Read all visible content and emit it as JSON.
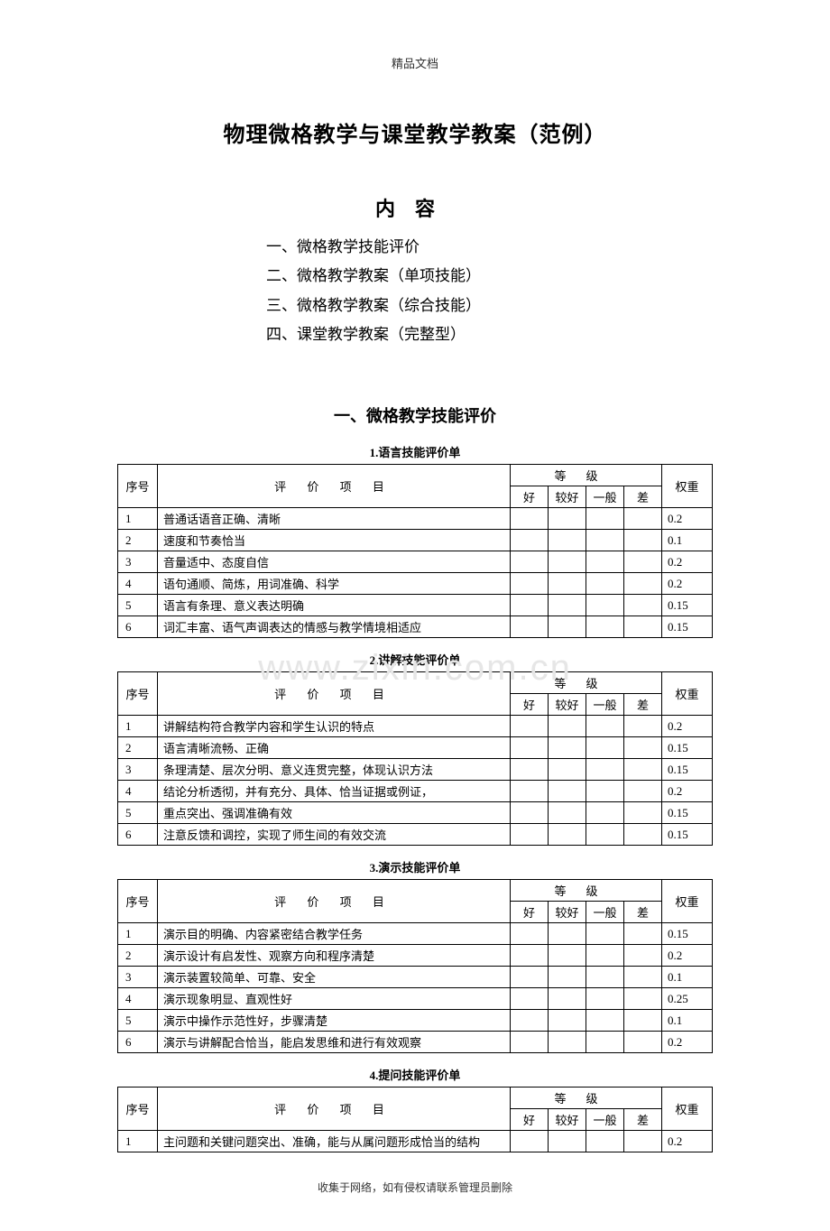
{
  "header_note": "精品文档",
  "main_title": "物理微格教学与课堂教学教案（范例）",
  "toc_title": "内容",
  "toc_items": [
    "一、微格教学技能评价",
    "二、微格教学教案（单项技能）",
    "三、微格教学教案（综合技能）",
    "四、课堂教学教案（完整型）"
  ],
  "section_title": "一、微格教学技能评价",
  "col_seq": "序号",
  "col_item": "评 价 项 目",
  "col_grade": "等级",
  "col_g1": "好",
  "col_g2": "较好",
  "col_g3": "一般",
  "col_g4": "差",
  "col_weight": "权重",
  "watermark": "www.zixin.com.cn",
  "footer_note": "收集于网络，如有侵权请联系管理员删除",
  "tables": [
    {
      "title": "1.语言技能评价单",
      "rows": [
        {
          "n": "1",
          "item": "普通话语音正确、清晰",
          "w": "0.2"
        },
        {
          "n": "2",
          "item": "速度和节奏恰当",
          "w": "0.1"
        },
        {
          "n": "3",
          "item": "音量适中、态度自信",
          "w": "0.2"
        },
        {
          "n": "4",
          "item": "语句通顺、简炼，用词准确、科学",
          "w": "0.2"
        },
        {
          "n": "5",
          "item": "语言有条理、意义表达明确",
          "w": "0.15"
        },
        {
          "n": "6",
          "item": "词汇丰富、语气声调表达的情感与教学情境相适应",
          "w": "0.15"
        }
      ]
    },
    {
      "title": "2.讲解技能评价单",
      "rows": [
        {
          "n": "1",
          "item": "讲解结构符合教学内容和学生认识的特点",
          "w": "0.2"
        },
        {
          "n": "2",
          "item": "语言清晰流畅、正确",
          "w": "0.15"
        },
        {
          "n": "3",
          "item": "条理清楚、层次分明、意义连贯完整，体现认识方法",
          "w": "0.15"
        },
        {
          "n": "4",
          "item": "结论分析透彻，并有充分、具体、恰当证据或例证，",
          "w": "0.2"
        },
        {
          "n": "5",
          "item": "重点突出、强调准确有效",
          "w": "0.15"
        },
        {
          "n": "6",
          "item": "注意反馈和调控，实现了师生间的有效交流",
          "w": "0.15"
        }
      ]
    },
    {
      "title": "3.演示技能评价单",
      "rows": [
        {
          "n": "1",
          "item": "演示目的明确、内容紧密结合教学任务",
          "w": "0.15"
        },
        {
          "n": "2",
          "item": "演示设计有启发性、观察方向和程序清楚",
          "w": "0.2"
        },
        {
          "n": "3",
          "item": "演示装置较简单、可靠、安全",
          "w": "0.1"
        },
        {
          "n": "4",
          "item": "演示现象明显、直观性好",
          "w": "0.25"
        },
        {
          "n": "5",
          "item": "演示中操作示范性好，步骤清楚",
          "w": "0.1"
        },
        {
          "n": "6",
          "item": "演示与讲解配合恰当，能启发思维和进行有效观察",
          "w": "0.2"
        }
      ]
    },
    {
      "title": "4.提问技能评价单",
      "rows": [
        {
          "n": "1",
          "item": "主问题和关键问题突出、准确，能与从属问题形成恰当的结构",
          "w": "0.2"
        }
      ]
    }
  ]
}
